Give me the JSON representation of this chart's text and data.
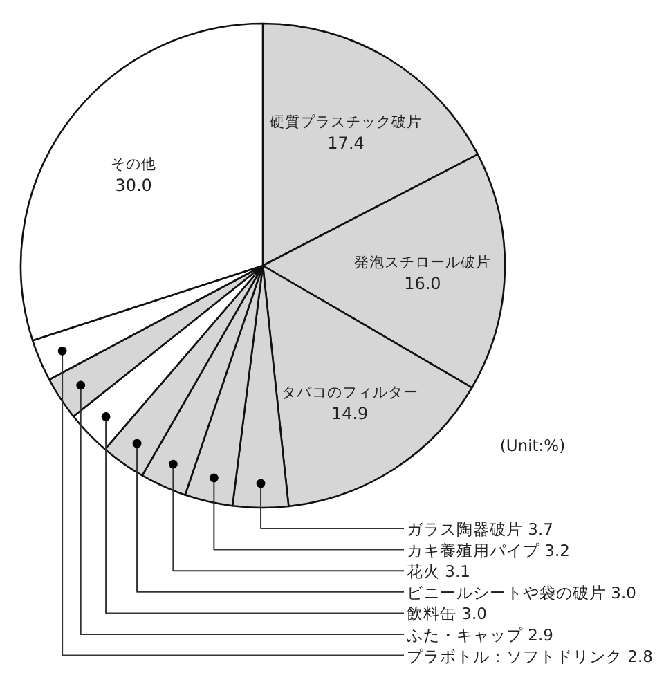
{
  "chart_data": {
    "type": "pie",
    "categories": [
      "硬質プラスチック破片",
      "発泡スチロール破片",
      "タバコのフィルター",
      "ガラス陶器破片",
      "カキ養殖用パイプ",
      "花火",
      "ビニールシートや袋の破片",
      "飲料缶",
      "ふた・キャップ",
      "プラボトル：ソフトドリンク",
      "その他"
    ],
    "values": [
      17.4,
      16.0,
      14.9,
      3.7,
      3.2,
      3.1,
      3.0,
      3.0,
      2.9,
      2.8,
      30.0
    ],
    "colors": [
      "#d6d6d6",
      "#d6d6d6",
      "#d6d6d6",
      "#d6d6d6",
      "#d6d6d6",
      "#d6d6d6",
      "#d6d6d6",
      "#ffffff",
      "#d6d6d6",
      "#ffffff",
      "#ffffff"
    ],
    "value_labels": [
      "17.4",
      "16.0",
      "14.9",
      "3.7",
      "3.2",
      "3.1",
      "3.0",
      "3.0",
      "2.9",
      "2.8",
      "30.0"
    ],
    "annotations": [
      "(Unit:%)"
    ]
  }
}
